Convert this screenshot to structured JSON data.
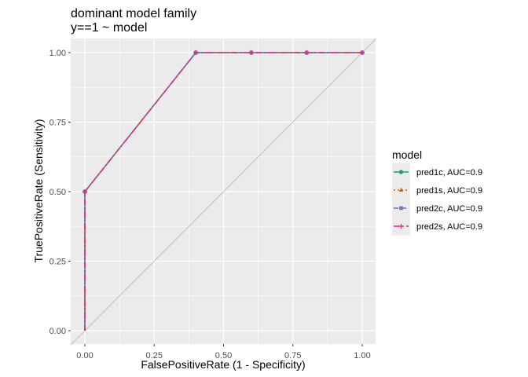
{
  "chart_data": {
    "type": "line",
    "title": [
      "dominant model family",
      "y==1 ~ model"
    ],
    "xlabel": "FalsePositiveRate (1 - Specificity)",
    "ylabel": "TruePositiveRate (Sensitivity)",
    "xlim": [
      0,
      1
    ],
    "ylim": [
      0,
      1
    ],
    "xticks": [
      0,
      0.25,
      0.5,
      0.75,
      1
    ],
    "yticks": [
      0,
      0.25,
      0.5,
      0.75,
      1
    ],
    "xtick_labels": [
      "0.00",
      "0.25",
      "0.50",
      "0.75",
      "1.00"
    ],
    "ytick_labels": [
      "0.00",
      "0.25",
      "0.50",
      "0.75",
      "1.00"
    ],
    "grid": true,
    "reference_line": {
      "from": [
        0,
        0
      ],
      "to": [
        1,
        1
      ],
      "color": "#bdbdbd"
    },
    "legend": {
      "title": "model",
      "position": "right"
    },
    "series": [
      {
        "name": "pred1c, AUC=0.9",
        "color": "#1b9e77",
        "dash": "solid",
        "marker": "circle",
        "x": [
          0,
          0,
          0.4,
          0.6,
          0.8,
          1
        ],
        "y": [
          0,
          0.5,
          1,
          1,
          1,
          1
        ]
      },
      {
        "name": "pred1s, AUC=0.9",
        "color": "#d95f02",
        "dash": "dotted",
        "marker": "triangle",
        "x": [
          0,
          0,
          0.4,
          0.6,
          0.8,
          1
        ],
        "y": [
          0,
          0.5,
          1,
          1,
          1,
          1
        ]
      },
      {
        "name": "pred2c, AUC=0.9",
        "color": "#7570b3",
        "dash": "dashed",
        "marker": "square",
        "x": [
          0,
          0,
          0.4,
          0.6,
          0.8,
          1
        ],
        "y": [
          0,
          0.5,
          1,
          1,
          1,
          1
        ]
      },
      {
        "name": "pred2s, AUC=0.9",
        "color": "#e7298a",
        "dash": "dashdot",
        "marker": "plus",
        "x": [
          0,
          0,
          0.4,
          0.6,
          0.8,
          1
        ],
        "y": [
          0,
          0.5,
          1,
          1,
          1,
          1
        ]
      }
    ]
  }
}
